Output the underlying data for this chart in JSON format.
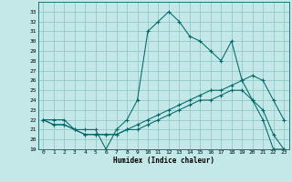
{
  "xlabel": "Humidex (Indice chaleur)",
  "xlim": [
    -0.5,
    23.5
  ],
  "ylim": [
    19,
    34
  ],
  "yticks": [
    19,
    20,
    21,
    22,
    23,
    24,
    25,
    26,
    27,
    28,
    29,
    30,
    31,
    32,
    33
  ],
  "xticks": [
    0,
    1,
    2,
    3,
    4,
    5,
    6,
    7,
    8,
    9,
    10,
    11,
    12,
    13,
    14,
    15,
    16,
    17,
    18,
    19,
    20,
    21,
    22,
    23
  ],
  "bg_color": "#c4e8e8",
  "grid_color": "#88c4c4",
  "line_color": "#006868",
  "series": [
    {
      "name": "humidex_curve",
      "x": [
        0,
        1,
        2,
        3,
        4,
        5,
        6,
        7,
        8,
        9,
        10,
        11,
        12,
        13,
        14,
        15,
        16,
        17,
        18,
        19,
        20,
        21,
        22,
        23
      ],
      "y": [
        22.0,
        22.0,
        22.0,
        21.0,
        21.0,
        21.0,
        19.0,
        21.0,
        22.0,
        24.0,
        31.0,
        32.0,
        33.0,
        32.0,
        30.5,
        30.0,
        29.0,
        28.0,
        30.0,
        26.0,
        24.0,
        22.0,
        19.0,
        19.0
      ]
    },
    {
      "name": "upper_mean",
      "x": [
        0,
        1,
        2,
        3,
        4,
        5,
        6,
        7,
        8,
        9,
        10,
        11,
        12,
        13,
        14,
        15,
        16,
        17,
        18,
        19,
        20,
        21,
        22,
        23
      ],
      "y": [
        22.0,
        21.5,
        21.5,
        21.0,
        20.5,
        20.5,
        20.5,
        20.5,
        21.0,
        21.5,
        22.0,
        22.5,
        23.0,
        23.5,
        24.0,
        24.5,
        25.0,
        25.0,
        25.5,
        26.0,
        26.5,
        26.0,
        24.0,
        22.0
      ]
    },
    {
      "name": "lower_mean",
      "x": [
        0,
        1,
        2,
        3,
        4,
        5,
        6,
        7,
        8,
        9,
        10,
        11,
        12,
        13,
        14,
        15,
        16,
        17,
        18,
        19,
        20,
        21,
        22,
        23
      ],
      "y": [
        22.0,
        21.5,
        21.5,
        21.0,
        20.5,
        20.5,
        20.5,
        20.5,
        21.0,
        21.0,
        21.5,
        22.0,
        22.5,
        23.0,
        23.5,
        24.0,
        24.0,
        24.5,
        25.0,
        25.0,
        24.0,
        23.0,
        20.5,
        19.0
      ]
    }
  ]
}
